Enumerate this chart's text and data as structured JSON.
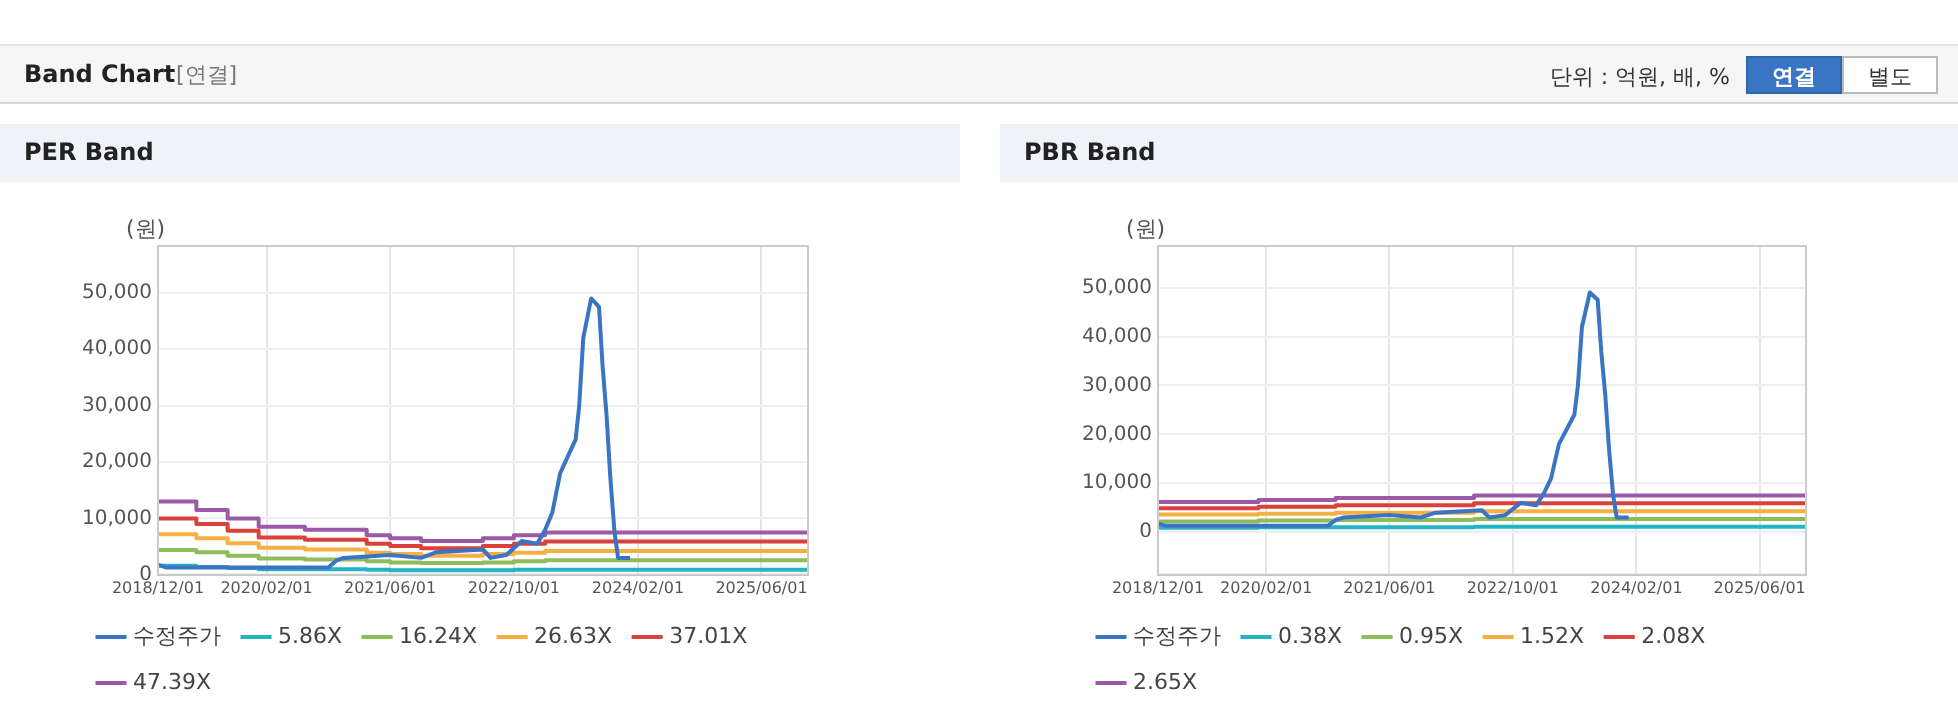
{
  "chart_data": [
    {
      "type": "other",
      "title": "Band Chart",
      "annotations": [
        "[연결]",
        "단위 : 억원, 배, %",
        "연결",
        "별도"
      ]
    },
    {
      "type": "line",
      "title": "PER Band",
      "ylabel": "(원)",
      "grid": true,
      "legend": "bottom",
      "marker": "none",
      "line_style": "solid",
      "xlim": [
        "2018-12-01",
        "2025-12-01"
      ],
      "xticks": [
        {
          "value": "2018-12-01",
          "label": "2018/12/01"
        },
        {
          "value": "2020-02-01",
          "label": "2020/02/01"
        },
        {
          "value": "2021-06-01",
          "label": "2021/06/01"
        },
        {
          "value": "2022-10-01",
          "label": "2022/10/01"
        },
        {
          "value": "2024-02-01",
          "label": "2024/02/01"
        },
        {
          "value": "2025-06-01",
          "label": "2025/06/01"
        }
      ],
      "ylim": [
        0,
        58300
      ],
      "yticks": [
        {
          "value": 0,
          "label": "0"
        },
        {
          "value": 10000,
          "label": "10,000"
        },
        {
          "value": 20000,
          "label": "20,000"
        },
        {
          "value": 30000,
          "label": "30,000"
        },
        {
          "value": 40000,
          "label": "40,000"
        },
        {
          "value": 50000,
          "label": "50,000"
        }
      ],
      "series": [
        {
          "name": "수정주가",
          "type": "line",
          "color": "#3a75c4",
          "x": [
            "2018-12-01",
            "2019-01-01",
            "2020-10-01",
            "2020-11-01",
            "2020-12-01",
            "2021-06-01",
            "2021-10-01",
            "2021-12-01",
            "2022-06-01",
            "2022-07-01",
            "2022-09-01",
            "2022-11-01",
            "2023-01-01",
            "2023-02-01",
            "2023-03-01",
            "2023-04-01",
            "2023-06-01",
            "2023-06-15",
            "2023-07-01",
            "2023-08-01",
            "2023-09-01",
            "2023-09-15",
            "2023-10-01",
            "2023-10-15",
            "2023-11-01",
            "2023-11-15",
            "2024-01-01"
          ],
          "values": [
            1800,
            1300,
            1300,
            2500,
            3000,
            3500,
            3000,
            4000,
            4500,
            3000,
            3500,
            6000,
            5500,
            8000,
            11000,
            18000,
            24000,
            30000,
            42000,
            49000,
            47500,
            37000,
            28000,
            17500,
            7500,
            3000,
            3000
          ]
        },
        {
          "name": "5.86X",
          "type": "step",
          "color": "#22b5c5",
          "x": [
            "2018-12-01",
            "2019-05-01",
            "2019-09-01",
            "2020-01-01",
            "2020-07-01",
            "2021-03-01",
            "2021-06-01",
            "2021-10-01",
            "2022-03-01",
            "2022-06-01",
            "2022-10-01",
            "2023-02-01",
            "2025-12-01"
          ],
          "values": [
            1600,
            1400,
            1200,
            1000,
            1000,
            900,
            800,
            800,
            800,
            800,
            900,
            900,
            900
          ]
        },
        {
          "name": "16.24X",
          "type": "step",
          "color": "#8fbc5a",
          "x": [
            "2018-12-01",
            "2019-05-01",
            "2019-09-01",
            "2020-01-01",
            "2020-07-01",
            "2021-03-01",
            "2021-06-01",
            "2021-10-01",
            "2022-03-01",
            "2022-06-01",
            "2022-10-01",
            "2023-02-01",
            "2025-12-01"
          ],
          "values": [
            4400,
            4000,
            3400,
            2900,
            2700,
            2400,
            2200,
            2100,
            2100,
            2200,
            2400,
            2600,
            2600
          ]
        },
        {
          "name": "26.63X",
          "type": "step",
          "color": "#f5b041",
          "x": [
            "2018-12-01",
            "2019-05-01",
            "2019-09-01",
            "2020-01-01",
            "2020-07-01",
            "2021-03-01",
            "2021-06-01",
            "2021-10-01",
            "2022-03-01",
            "2022-06-01",
            "2022-10-01",
            "2023-02-01",
            "2025-12-01"
          ],
          "values": [
            7200,
            6500,
            5600,
            4800,
            4500,
            3900,
            3700,
            3400,
            3400,
            3700,
            3900,
            4200,
            4200
          ]
        },
        {
          "name": "37.01X",
          "type": "step",
          "color": "#d9413a",
          "x": [
            "2018-12-01",
            "2019-05-01",
            "2019-09-01",
            "2020-01-01",
            "2020-07-01",
            "2021-03-01",
            "2021-06-01",
            "2021-10-01",
            "2022-03-01",
            "2022-06-01",
            "2022-10-01",
            "2023-02-01",
            "2025-12-01"
          ],
          "values": [
            10000,
            9000,
            7800,
            6600,
            6200,
            5500,
            5100,
            4700,
            4700,
            5100,
            5500,
            5900,
            5900
          ]
        },
        {
          "name": "47.39X",
          "type": "step",
          "color": "#9b59a8",
          "x": [
            "2018-12-01",
            "2019-05-01",
            "2019-09-01",
            "2020-01-01",
            "2020-07-01",
            "2021-03-01",
            "2021-06-01",
            "2021-10-01",
            "2022-03-01",
            "2022-06-01",
            "2022-10-01",
            "2023-02-01",
            "2025-12-01"
          ],
          "values": [
            13000,
            11500,
            10000,
            8500,
            8000,
            7000,
            6500,
            6000,
            6000,
            6500,
            7000,
            7500,
            7500
          ]
        }
      ]
    },
    {
      "type": "line",
      "title": "PBR Band",
      "ylabel": "(원)",
      "grid": true,
      "legend": "bottom",
      "marker": "none",
      "line_style": "solid",
      "xlim": [
        "2018-12-01",
        "2025-12-01"
      ],
      "xticks": [
        {
          "value": "2018-12-01",
          "label": "2018/12/01"
        },
        {
          "value": "2020-02-01",
          "label": "2020/02/01"
        },
        {
          "value": "2021-06-01",
          "label": "2021/06/01"
        },
        {
          "value": "2022-10-01",
          "label": "2022/10/01"
        },
        {
          "value": "2024-02-01",
          "label": "2024/02/01"
        },
        {
          "value": "2025-06-01",
          "label": "2025/06/01"
        }
      ],
      "ylim": [
        -8700,
        58500
      ],
      "yticks": [
        {
          "value": 0,
          "label": "0"
        },
        {
          "value": 10000,
          "label": "10,000"
        },
        {
          "value": 20000,
          "label": "20,000"
        },
        {
          "value": 30000,
          "label": "30,000"
        },
        {
          "value": 40000,
          "label": "40,000"
        },
        {
          "value": 50000,
          "label": "50,000"
        }
      ],
      "series": [
        {
          "name": "수정주가",
          "type": "line",
          "color": "#3a75c4",
          "x": [
            "2018-12-01",
            "2019-01-01",
            "2020-10-01",
            "2020-11-01",
            "2020-12-01",
            "2021-06-01",
            "2021-10-01",
            "2021-12-01",
            "2022-06-01",
            "2022-07-01",
            "2022-09-01",
            "2022-11-01",
            "2023-01-01",
            "2023-02-01",
            "2023-03-01",
            "2023-04-01",
            "2023-06-01",
            "2023-06-15",
            "2023-07-01",
            "2023-08-01",
            "2023-09-01",
            "2023-09-15",
            "2023-10-01",
            "2023-10-15",
            "2023-11-01",
            "2023-11-15",
            "2024-01-01"
          ],
          "values": [
            1800,
            1300,
            1300,
            2500,
            3000,
            3500,
            3000,
            4000,
            4500,
            3000,
            3500,
            6000,
            5500,
            8000,
            11000,
            18000,
            24000,
            30000,
            42000,
            49000,
            47500,
            37000,
            28000,
            17500,
            7500,
            3000,
            3000
          ]
        },
        {
          "name": "0.38X",
          "type": "step",
          "color": "#22b5c5",
          "x": [
            "2018-12-01",
            "2020-01-01",
            "2020-11-01",
            "2022-05-01",
            "2025-12-01"
          ],
          "values": [
            900,
            1000,
            1000,
            1100,
            1100
          ]
        },
        {
          "name": "0.95X",
          "type": "step",
          "color": "#8fbc5a",
          "x": [
            "2018-12-01",
            "2020-01-01",
            "2020-11-01",
            "2022-05-01",
            "2025-12-01"
          ],
          "values": [
            2200,
            2400,
            2500,
            2700,
            2700
          ]
        },
        {
          "name": "1.52X",
          "type": "step",
          "color": "#f5b041",
          "x": [
            "2018-12-01",
            "2020-01-01",
            "2020-11-01",
            "2022-05-01",
            "2025-12-01"
          ],
          "values": [
            3600,
            3800,
            4000,
            4300,
            4300
          ]
        },
        {
          "name": "2.08X",
          "type": "step",
          "color": "#d9413a",
          "x": [
            "2018-12-01",
            "2020-01-01",
            "2020-11-01",
            "2022-05-01",
            "2025-12-01"
          ],
          "values": [
            4900,
            5200,
            5500,
            5900,
            5900
          ]
        },
        {
          "name": "2.65X",
          "type": "step",
          "color": "#9b59a8",
          "x": [
            "2018-12-01",
            "2020-01-01",
            "2020-11-01",
            "2022-05-01",
            "2025-12-01"
          ],
          "values": [
            6200,
            6600,
            7000,
            7500,
            7500
          ]
        }
      ]
    }
  ]
}
